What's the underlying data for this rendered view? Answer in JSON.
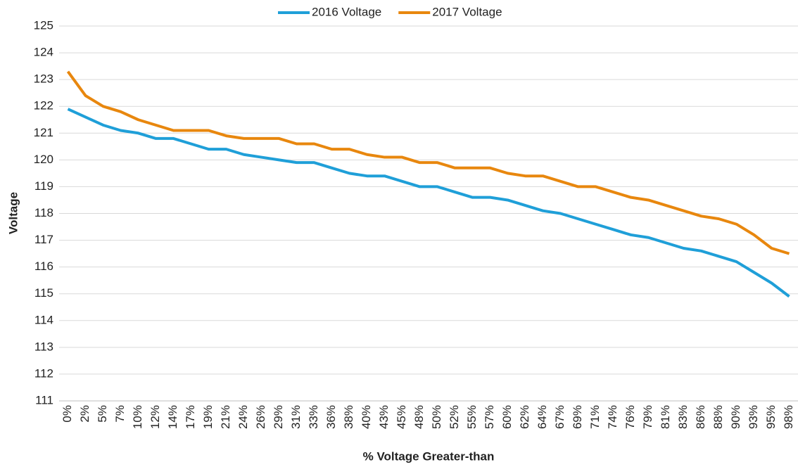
{
  "chart_data": {
    "type": "line",
    "x_label": "% Voltage Greater-than",
    "y_label": "Voltage",
    "categories": [
      "0%",
      "2%",
      "5%",
      "7%",
      "10%",
      "12%",
      "14%",
      "17%",
      "19%",
      "21%",
      "24%",
      "26%",
      "29%",
      "31%",
      "33%",
      "36%",
      "38%",
      "40%",
      "43%",
      "45%",
      "48%",
      "50%",
      "52%",
      "55%",
      "57%",
      "60%",
      "62%",
      "64%",
      "67%",
      "69%",
      "71%",
      "74%",
      "76%",
      "79%",
      "81%",
      "83%",
      "86%",
      "88%",
      "90%",
      "93%",
      "95%",
      "98%"
    ],
    "series": [
      {
        "name": "2016 Voltage",
        "color": "#1f9fd8",
        "values": [
          121.9,
          121.6,
          121.3,
          121.1,
          121.0,
          120.8,
          120.8,
          120.6,
          120.4,
          120.4,
          120.2,
          120.1,
          120.0,
          119.9,
          119.9,
          119.7,
          119.5,
          119.4,
          119.4,
          119.2,
          119.0,
          119.0,
          118.8,
          118.6,
          118.6,
          118.5,
          118.3,
          118.1,
          118.0,
          117.8,
          117.6,
          117.4,
          117.2,
          117.1,
          116.9,
          116.7,
          116.6,
          116.4,
          116.2,
          115.8,
          115.4,
          114.9
        ]
      },
      {
        "name": "2017 Voltage",
        "color": "#e8870e",
        "values": [
          123.3,
          122.4,
          122.0,
          121.8,
          121.5,
          121.3,
          121.1,
          121.1,
          121.1,
          120.9,
          120.8,
          120.8,
          120.8,
          120.6,
          120.6,
          120.4,
          120.4,
          120.2,
          120.1,
          120.1,
          119.9,
          119.9,
          119.7,
          119.7,
          119.7,
          119.5,
          119.4,
          119.4,
          119.2,
          119.0,
          119.0,
          118.8,
          118.6,
          118.5,
          118.3,
          118.1,
          117.9,
          117.8,
          117.6,
          117.2,
          116.7,
          116.5
        ]
      }
    ],
    "ylim": [
      111,
      125
    ],
    "yticks": [
      111,
      112,
      113,
      114,
      115,
      116,
      117,
      118,
      119,
      120,
      121,
      122,
      123,
      124,
      125
    ],
    "grid": true,
    "legend": "top"
  }
}
